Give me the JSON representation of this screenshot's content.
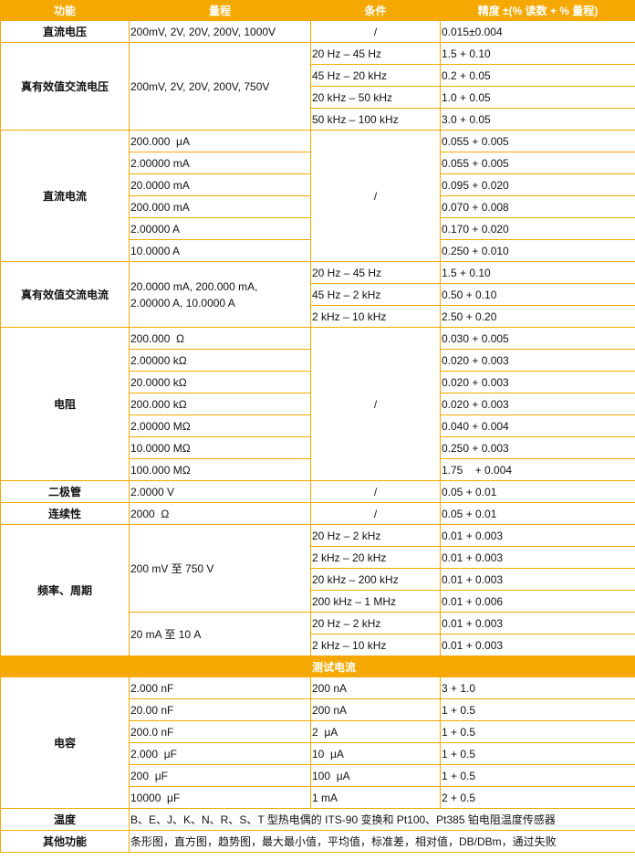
{
  "colors": {
    "accent": "#f5a800"
  },
  "header": [
    "功能",
    "量程",
    "条件",
    "精度 ±(% 读数 + % 量程)"
  ],
  "sections": [
    {
      "function": "直流电压",
      "ranges": [
        [
          "200mV, 2V, 20V, 200V, 1000V",
          1
        ]
      ],
      "conditions": [
        [
          "/",
          1
        ]
      ],
      "accuracy": [
        "0.015±0.004"
      ]
    },
    {
      "function": "真有效值交流电压",
      "ranges": [
        [
          "200mV, 2V, 20V, 200V, 750V",
          4
        ]
      ],
      "conditions": [
        [
          "20 Hz – 45 Hz",
          1
        ],
        [
          "45 Hz – 20 kHz",
          1
        ],
        [
          "20 kHz – 50 kHz",
          1
        ],
        [
          "50 kHz – 100 kHz",
          1
        ]
      ],
      "accuracy": [
        "1.5 + 0.10",
        "0.2 + 0.05",
        "1.0 + 0.05",
        "3.0 + 0.05"
      ]
    },
    {
      "function": "直流电流",
      "ranges": [
        [
          "200.000  μA",
          1
        ],
        [
          "2.00000 mA",
          1
        ],
        [
          "20.0000 mA",
          1
        ],
        [
          "200.000 mA",
          1
        ],
        [
          "2.00000 A",
          1
        ],
        [
          "10.0000 A",
          1
        ]
      ],
      "conditions": [
        [
          "/",
          6
        ]
      ],
      "accuracy": [
        "0.055 + 0.005",
        "0.055 + 0.005",
        "0.095 + 0.020",
        "0.070 + 0.008",
        "0.170 + 0.020",
        "0.250 + 0.010"
      ]
    },
    {
      "function": "真有效值交流电流",
      "ranges": [
        [
          "20.0000 mA, 200.000 mA,\n2.00000 A, 10.0000 A",
          3
        ]
      ],
      "conditions": [
        [
          "20 Hz – 45 Hz",
          1
        ],
        [
          "45 Hz – 2 kHz",
          1
        ],
        [
          "2 kHz – 10 kHz",
          1
        ]
      ],
      "accuracy": [
        "1.5 + 0.10",
        "0.50 + 0.10",
        "2.50 + 0.20"
      ]
    },
    {
      "function": "电阻",
      "ranges": [
        [
          "200.000  Ω",
          1
        ],
        [
          "2.00000 kΩ",
          1
        ],
        [
          "20.0000 kΩ",
          1
        ],
        [
          "200.000 kΩ",
          1
        ],
        [
          "2.00000 MΩ",
          1
        ],
        [
          "10.0000 MΩ",
          1
        ],
        [
          "100.000 MΩ",
          1
        ]
      ],
      "conditions": [
        [
          "/",
          7
        ]
      ],
      "accuracy": [
        "0.030 + 0.005",
        "0.020 + 0.003",
        "0.020 + 0.003",
        "0.020 + 0.003",
        "0.040 + 0.004",
        "0.250 + 0.003",
        "1.75    + 0.004"
      ]
    },
    {
      "function": "二极管",
      "ranges": [
        [
          "2.0000 V",
          1
        ]
      ],
      "conditions": [
        [
          "/",
          1
        ]
      ],
      "accuracy": [
        "0.05 + 0.01"
      ]
    },
    {
      "function": "连续性",
      "ranges": [
        [
          "2000  Ω",
          1
        ]
      ],
      "conditions": [
        [
          "/",
          1
        ]
      ],
      "accuracy": [
        "0.05 + 0.01"
      ]
    },
    {
      "function": "频率、周期",
      "ranges": [
        [
          "200 mV  至  750 V",
          4
        ],
        [
          "20 mA  至    10 A",
          2
        ]
      ],
      "conditions": [
        [
          "20 Hz – 2 kHz",
          1
        ],
        [
          "2 kHz – 20 kHz",
          1
        ],
        [
          "20 kHz – 200 kHz",
          1
        ],
        [
          "200 kHz – 1 MHz",
          1
        ],
        [
          "20 Hz – 2 kHz",
          1
        ],
        [
          "2 kHz – 10 kHz",
          1
        ]
      ],
      "accuracy": [
        "0.01 + 0.003",
        "0.01 + 0.003",
        "0.01 + 0.003",
        "0.01 + 0.006",
        "0.01 + 0.003",
        "0.01 + 0.003"
      ]
    },
    {
      "band": "测试电流"
    },
    {
      "function": "电容",
      "ranges": [
        [
          "2.000 nF",
          1
        ],
        [
          "20.00 nF",
          1
        ],
        [
          "200.0 nF",
          1
        ],
        [
          "2.000  μF",
          1
        ],
        [
          "200  μF",
          1
        ],
        [
          "10000  μF",
          1
        ]
      ],
      "conditions": [
        [
          "200 nA",
          1
        ],
        [
          "200 nA",
          1
        ],
        [
          "2  μA",
          1
        ],
        [
          "10  μA",
          1
        ],
        [
          "100  μA",
          1
        ],
        [
          "1 mA",
          1
        ]
      ],
      "accuracy": [
        "3 + 1.0",
        "1 + 0.5",
        "1 + 0.5",
        "1 + 0.5",
        "1 + 0.5",
        "2 + 0.5"
      ]
    },
    {
      "function": "温度",
      "full": "B、E、J、K、N、R、S、T 型热电偶的 ITS-90 变换和 Pt100、Pt385 铂电阻温度传感器"
    },
    {
      "function": "其他功能",
      "full": "条形图，直方图，趋势图，最大最小值，平均值，标准差，相对值，DB/DBm，通过失败"
    }
  ]
}
